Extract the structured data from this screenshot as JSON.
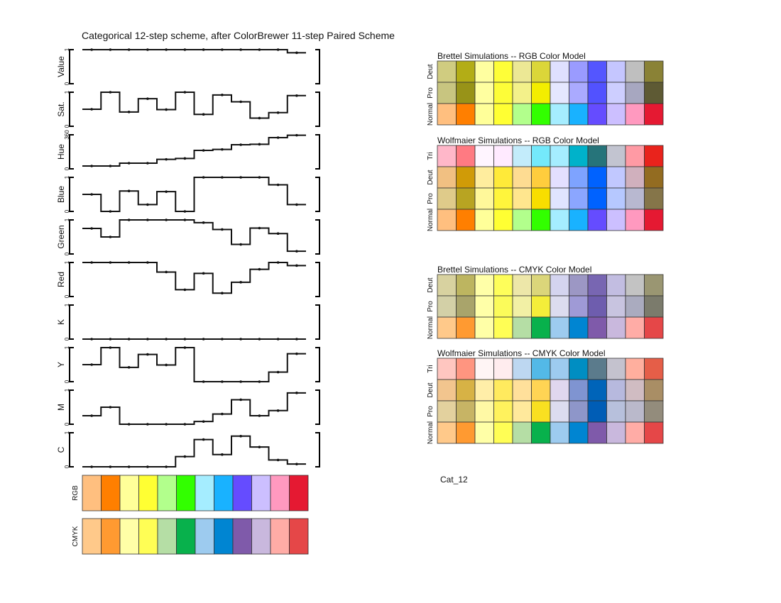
{
  "title": "Categorical 12-step scheme, after ColorBrewer 11-step Paired Scheme",
  "caption": "Cat_12",
  "chart_data": {
    "type": "line",
    "step": true,
    "n": 12,
    "panels": [
      {
        "label": "Value",
        "ticks": [
          "0",
          "1"
        ],
        "ylim": [
          0,
          1
        ],
        "values": [
          1,
          1,
          1,
          1,
          1,
          1,
          1,
          1,
          1,
          1,
          1,
          0.91
        ]
      },
      {
        "label": "Sat.",
        "ticks": [
          "0",
          "1"
        ],
        "ylim": [
          0,
          1
        ],
        "values": [
          0.5,
          1,
          0.42,
          0.81,
          0.49,
          1,
          0.35,
          0.92,
          0.72,
          0.24,
          0.4,
          0.9
        ]
      },
      {
        "label": "Hue",
        "ticks": [
          "0",
          "360"
        ],
        "ylim": [
          0,
          360
        ],
        "values": [
          30,
          30,
          60,
          60,
          100,
          110,
          195,
          205,
          255,
          260,
          330,
          355
        ]
      },
      {
        "label": "Blue",
        "ticks": [
          "0",
          "1"
        ],
        "ylim": [
          0,
          1
        ],
        "values": [
          0.5,
          0,
          0.6,
          0.2,
          0.58,
          0,
          1,
          1,
          1,
          1,
          0.78,
          0.2
        ]
      },
      {
        "label": "Green",
        "ticks": [
          "0",
          "1"
        ],
        "ylim": [
          0,
          1
        ],
        "values": [
          0.75,
          0.5,
          1,
          1,
          1,
          1,
          0.92,
          0.72,
          0.28,
          0.76,
          0.6,
          0.08
        ]
      },
      {
        "label": "Red",
        "ticks": [
          "0",
          "1"
        ],
        "ylim": [
          0,
          1
        ],
        "values": [
          1,
          1,
          1,
          1,
          0.72,
          0.2,
          0.68,
          0.1,
          0.42,
          0.8,
          1,
          0.91
        ]
      },
      {
        "label": "K",
        "ticks": [
          "0",
          "1"
        ],
        "ylim": [
          0,
          1
        ],
        "values": [
          0,
          0,
          0,
          0,
          0,
          0,
          0,
          0,
          0,
          0,
          0,
          0
        ]
      },
      {
        "label": "Y",
        "ticks": [
          "0",
          "1"
        ],
        "ylim": [
          0,
          1
        ],
        "values": [
          0.5,
          1,
          0.42,
          0.8,
          0.49,
          1,
          0,
          0,
          0,
          0,
          0.28,
          0.82
        ]
      },
      {
        "label": "M",
        "ticks": [
          "0",
          "1"
        ],
        "ylim": [
          0,
          1
        ],
        "values": [
          0.25,
          0.5,
          0,
          0,
          0,
          0,
          0.08,
          0.3,
          0.72,
          0.25,
          0.4,
          0.92
        ]
      },
      {
        "label": "C",
        "ticks": [
          "0",
          "1"
        ],
        "ylim": [
          0,
          1
        ],
        "values": [
          0,
          0,
          0,
          0,
          0,
          0.3,
          0.8,
          0.36,
          0.9,
          0.58,
          0.2,
          0.08
        ]
      }
    ],
    "swatches": [
      {
        "label": "RGB",
        "colors": [
          "#ffbf7f",
          "#ff7f00",
          "#ffff99",
          "#ffff33",
          "#b2ff8c",
          "#32ff00",
          "#a5edff",
          "#19b2ff",
          "#654cff",
          "#ccbfff",
          "#ff99bf",
          "#e51932"
        ]
      },
      {
        "label": "CMYK",
        "colors": [
          "#ffc98a",
          "#ff9a31",
          "#ffffa7",
          "#fffe55",
          "#b5dea5",
          "#08b14c",
          "#9dcbef",
          "#0085d2",
          "#7f5aaa",
          "#c9b8dd",
          "#ffaca6",
          "#e54748"
        ]
      }
    ],
    "simulations": [
      {
        "title": "Brettel Simulations -- RGB Color Model",
        "rows": [
          {
            "label": "Deut",
            "colors": [
              "#d0cc80",
              "#b3ad16",
              "#ffffa0",
              "#fefe38",
              "#ece895",
              "#dbd639",
              "#dfe0ff",
              "#9a9bff",
              "#5456ff",
              "#c5c6ff",
              "#bfbfbf",
              "#8a8236"
            ]
          },
          {
            "label": "Pro",
            "colors": [
              "#c8c580",
              "#989318",
              "#ffffa0",
              "#fdfd38",
              "#f3f18a",
              "#f3ee00",
              "#e5e7ff",
              "#aaaaff",
              "#5252ff",
              "#cdceff",
              "#a7a7c0",
              "#5e5a34"
            ]
          },
          {
            "label": "Normal",
            "colors": [
              "#ffbf7f",
              "#ff7f00",
              "#ffff99",
              "#ffff33",
              "#b2ff8c",
              "#32ff00",
              "#a5edff",
              "#19b2ff",
              "#654cff",
              "#ccbfff",
              "#ff99bf",
              "#e51932"
            ]
          }
        ]
      },
      {
        "title": "Wolfmaier Simulations -- RGB Color Model",
        "rows": [
          {
            "label": "Tri",
            "colors": [
              "#ffb7c9",
              "#ff7a82",
              "#fff5ff",
              "#ffeaff",
              "#c3ecfb",
              "#74e9fb",
              "#a5edff",
              "#00b2ca",
              "#26747a",
              "#c2c4d0",
              "#ff9aa4",
              "#e9231c"
            ]
          },
          {
            "label": "Deut",
            "colors": [
              "#f1c082",
              "#d09b07",
              "#ffed9e",
              "#ffea39",
              "#fedc92",
              "#ffcd3d",
              "#e3dfff",
              "#7ea3ff",
              "#0062ff",
              "#c1c8ff",
              "#d0b0bd",
              "#936c21"
            ]
          },
          {
            "label": "Pro",
            "colors": [
              "#dfcb8a",
              "#b8a422",
              "#fff89a",
              "#fff53c",
              "#ffe68e",
              "#f8de00",
              "#e0e4ff",
              "#8ba6ff",
              "#0062ff",
              "#b6c8ff",
              "#b8b8d0",
              "#857549"
            ]
          },
          {
            "label": "Normal",
            "colors": [
              "#ffbf7f",
              "#ff7f00",
              "#ffff99",
              "#ffff33",
              "#b2ff8c",
              "#32ff00",
              "#a5edff",
              "#19b2ff",
              "#654cff",
              "#ccbfff",
              "#ff99bf",
              "#e51932"
            ]
          }
        ]
      },
      {
        "title": "Brettel Simulations -- CMYK Color Model",
        "rows": [
          {
            "label": "Deut",
            "colors": [
              "#d8d2a0",
              "#bdb560",
              "#ffffa8",
              "#fefe5a",
              "#ede7a9",
              "#dbd67a",
              "#d4d4ef",
              "#9c97c4",
              "#7866b2",
              "#c2bde1",
              "#c3c3c3",
              "#9a9672"
            ]
          },
          {
            "label": "Pro",
            "colors": [
              "#d3d0a7",
              "#a9a46b",
              "#ffffa8",
              "#fbfb5a",
              "#f2f0a5",
              "#f4ee3a",
              "#dcdcef",
              "#9f9ad6",
              "#6e5dae",
              "#c8c4e0",
              "#aaabbf",
              "#7b7b6c"
            ]
          },
          {
            "label": "Normal",
            "colors": [
              "#ffc98a",
              "#ff9a31",
              "#ffffa7",
              "#fffe55",
              "#b5dea5",
              "#08b14c",
              "#9dcbef",
              "#0085d2",
              "#7f5aaa",
              "#c9b8dd",
              "#ffaca6",
              "#e54748"
            ]
          }
        ]
      },
      {
        "title": "Wolfmaier Simulations -- CMYK Color Model",
        "rows": [
          {
            "label": "Tri",
            "colors": [
              "#ffc6c0",
              "#ff9580",
              "#fff5f5",
              "#ffecee",
              "#bdd7f1",
              "#53b9e7",
              "#9dcbef",
              "#008ec2",
              "#5b7b8c",
              "#c4c2ce",
              "#ffaf9e",
              "#e55e48"
            ]
          },
          {
            "label": "Deut",
            "colors": [
              "#f2c58e",
              "#d7b245",
              "#ffeea8",
              "#ffea5e",
              "#ffe09b",
              "#ffd454",
              "#e0d7ef",
              "#7f94d1",
              "#0064b9",
              "#b7b9de",
              "#d0bcc2",
              "#a98e65"
            ]
          },
          {
            "label": "Pro",
            "colors": [
              "#e3d19e",
              "#c7b465",
              "#fff9a5",
              "#fff25d",
              "#ffe99c",
              "#f9e021",
              "#dcdcef",
              "#8e96c9",
              "#005db6",
              "#b7c0dc",
              "#bab9cb",
              "#938c7c"
            ]
          },
          {
            "label": "Normal",
            "colors": [
              "#ffc98a",
              "#ff9a31",
              "#ffffa7",
              "#fffe55",
              "#b5dea5",
              "#08b14c",
              "#9dcbef",
              "#0085d2",
              "#7f5aaa",
              "#c9b8dd",
              "#ffaca6",
              "#e54748"
            ]
          }
        ]
      }
    ]
  }
}
